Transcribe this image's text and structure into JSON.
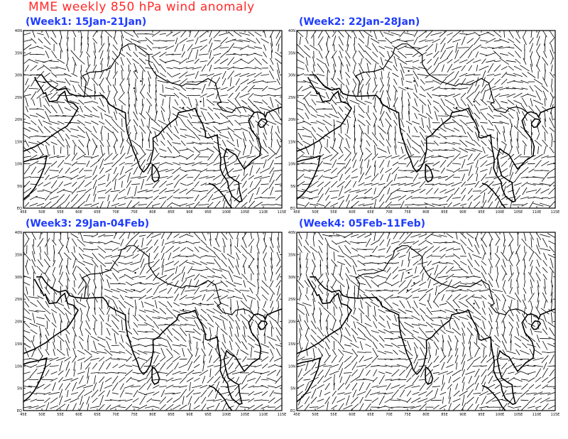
{
  "title": "MME weekly 850 hPa wind anomaly",
  "colors": {
    "title": "#ff2a2a",
    "panel_title": "#1e3cff",
    "vectors": "#000000",
    "coast": "#000000"
  },
  "map": {
    "lon_range": [
      45,
      115
    ],
    "lat_range": [
      0,
      40
    ],
    "lon_ticks": [
      "45E",
      "50E",
      "55E",
      "60E",
      "65E",
      "70E",
      "75E",
      "80E",
      "85E",
      "90E",
      "95E",
      "100E",
      "105E",
      "110E",
      "115E"
    ],
    "lat_ticks": [
      "EQ",
      "5N",
      "10N",
      "15N",
      "20N",
      "25N",
      "30N",
      "35N",
      "40N"
    ]
  },
  "panels": [
    {
      "id": "week1",
      "label": "(Week1: 15Jan-21Jan)"
    },
    {
      "id": "week2",
      "label": "(Week2: 22Jan-28Jan)"
    },
    {
      "id": "week3",
      "label": "(Week3: 29Jan-04Feb)"
    },
    {
      "id": "week4",
      "label": "(Week4: 05Feb-11Feb)"
    }
  ],
  "coastline": {
    "india_west": [
      [
        68,
        23.5
      ],
      [
        70,
        22.5
      ],
      [
        72.6,
        21.5
      ],
      [
        72.8,
        19
      ],
      [
        73.2,
        17
      ],
      [
        74,
        15
      ],
      [
        74.8,
        12.8
      ],
      [
        75.8,
        11
      ],
      [
        76.5,
        9.2
      ],
      [
        77.5,
        8.1
      ]
    ],
    "india_east": [
      [
        77.5,
        8.1
      ],
      [
        78.5,
        9
      ],
      [
        79.4,
        10.3
      ],
      [
        79.8,
        11.8
      ],
      [
        80.2,
        13.3
      ],
      [
        80.1,
        15.8
      ],
      [
        81.6,
        16.5
      ],
      [
        82.5,
        17.4
      ],
      [
        84.5,
        19
      ],
      [
        86.5,
        20.3
      ],
      [
        87,
        21.5
      ],
      [
        88.5,
        21.8
      ],
      [
        90,
        22
      ],
      [
        91.5,
        22.5
      ],
      [
        92.3,
        20.8
      ],
      [
        93.5,
        19
      ],
      [
        94.3,
        17
      ],
      [
        94.3,
        16
      ],
      [
        95,
        15.8
      ],
      [
        97.5,
        16.5
      ],
      [
        97.8,
        14
      ],
      [
        98.5,
        11
      ],
      [
        98.3,
        9
      ],
      [
        99,
        7.5
      ],
      [
        100.3,
        6
      ],
      [
        100.6,
        4.5
      ],
      [
        101.5,
        2.7
      ],
      [
        103.5,
        1.4
      ],
      [
        104.2,
        1.6
      ],
      [
        103.5,
        4
      ],
      [
        103.3,
        5.8
      ],
      [
        102.2,
        6.3
      ],
      [
        100.5,
        7.3
      ],
      [
        99.8,
        9.3
      ],
      [
        99.3,
        11.5
      ],
      [
        100,
        13.4
      ],
      [
        101,
        12.7
      ],
      [
        102.5,
        12
      ],
      [
        103.5,
        10.5
      ],
      [
        104.8,
        8.8
      ],
      [
        106,
        9.8
      ],
      [
        107,
        10.7
      ],
      [
        109,
        11.8
      ],
      [
        109.3,
        13.8
      ],
      [
        108.7,
        15.5
      ],
      [
        106.8,
        17.5
      ],
      [
        106,
        19.7
      ],
      [
        107.5,
        21.5
      ],
      [
        108.5,
        21.7
      ],
      [
        110,
        21.2
      ],
      [
        110.5,
        20.5
      ],
      [
        111,
        21.5
      ],
      [
        113,
        22.2
      ],
      [
        115,
        22.8
      ]
    ],
    "arabia": [
      [
        45,
        12.8
      ],
      [
        48,
        13.8
      ],
      [
        51,
        15.2
      ],
      [
        52.2,
        16
      ],
      [
        53.5,
        16.8
      ],
      [
        55,
        17.6
      ],
      [
        56.8,
        18.5
      ],
      [
        57.8,
        19.7
      ],
      [
        58.8,
        21
      ],
      [
        59.8,
        22.5
      ],
      [
        58.6,
        23.6
      ],
      [
        57,
        24
      ],
      [
        56.4,
        25.5
      ],
      [
        56.2,
        26.3
      ],
      [
        55,
        25.5
      ],
      [
        54,
        24.2
      ],
      [
        52,
        24
      ],
      [
        51.3,
        25.2
      ],
      [
        51,
        26
      ],
      [
        50.5,
        25.8
      ],
      [
        50,
        26.7
      ],
      [
        49,
        28
      ],
      [
        48,
        29.5
      ]
    ],
    "persia": [
      [
        48.5,
        30
      ],
      [
        50,
        30
      ],
      [
        51,
        28.8
      ],
      [
        52.5,
        27.5
      ],
      [
        54.5,
        26.6
      ],
      [
        56.5,
        27
      ],
      [
        57.5,
        25.8
      ],
      [
        59,
        25.4
      ],
      [
        61.5,
        25.2
      ],
      [
        64,
        25.3
      ],
      [
        66.5,
        25.4
      ],
      [
        67.5,
        24.5
      ],
      [
        68,
        23.5
      ]
    ],
    "africa": [
      [
        45,
        2
      ],
      [
        46.5,
        3
      ],
      [
        48,
        4.5
      ],
      [
        49.5,
        6.8
      ],
      [
        50.8,
        9.5
      ],
      [
        51.3,
        11.8
      ],
      [
        49,
        11.2
      ],
      [
        46.5,
        10.8
      ],
      [
        45,
        10.4
      ]
    ],
    "sri_lanka": [
      [
        79.9,
        9.8
      ],
      [
        80.6,
        9.4
      ],
      [
        81.3,
        8.5
      ],
      [
        81.8,
        7.2
      ],
      [
        81.5,
        6.3
      ],
      [
        80.5,
        5.9
      ],
      [
        79.9,
        6.6
      ],
      [
        79.8,
        8
      ]
    ],
    "hainan": [
      [
        108.6,
        19.2
      ],
      [
        109.5,
        20.1
      ],
      [
        110.6,
        20
      ],
      [
        111,
        19.5
      ],
      [
        110,
        18.3
      ],
      [
        109.2,
        18.2
      ],
      [
        108.6,
        18.8
      ]
    ],
    "sumatra": [
      [
        95.2,
        5.6
      ],
      [
        96.5,
        5.2
      ],
      [
        98,
        4
      ],
      [
        99.5,
        2.5
      ],
      [
        100.5,
        1
      ],
      [
        101.5,
        0
      ]
    ],
    "border": [
      [
        61.5,
        25.2
      ],
      [
        62,
        28.5
      ],
      [
        61,
        29.8
      ],
      [
        63,
        30.6
      ],
      [
        66,
        30.8
      ],
      [
        68.5,
        31.5
      ],
      [
        70,
        33.5
      ],
      [
        71,
        34.5
      ],
      [
        71.5,
        36
      ],
      [
        73.5,
        37
      ],
      [
        75,
        37
      ],
      [
        77,
        35.8
      ],
      [
        79,
        34.5
      ],
      [
        79,
        32.5
      ],
      [
        80.5,
        30.5
      ],
      [
        81,
        30
      ],
      [
        84,
        28.5
      ],
      [
        88,
        27.5
      ],
      [
        89,
        28
      ],
      [
        92,
        27.8
      ],
      [
        95,
        29.2
      ],
      [
        97,
        28.2
      ],
      [
        98,
        25
      ],
      [
        98.5,
        24
      ],
      [
        97.5,
        23.5
      ],
      [
        99,
        22
      ],
      [
        101.5,
        21.5
      ],
      [
        102.5,
        22.5
      ],
      [
        104.5,
        22.8
      ],
      [
        106,
        22.4
      ],
      [
        107.5,
        21.5
      ]
    ],
    "dots": [
      [
        76.8,
        28.6
      ],
      [
        75.3,
        30.9
      ],
      [
        88.3,
        22.6
      ],
      [
        93,
        24
      ],
      [
        75,
        27
      ]
    ]
  }
}
